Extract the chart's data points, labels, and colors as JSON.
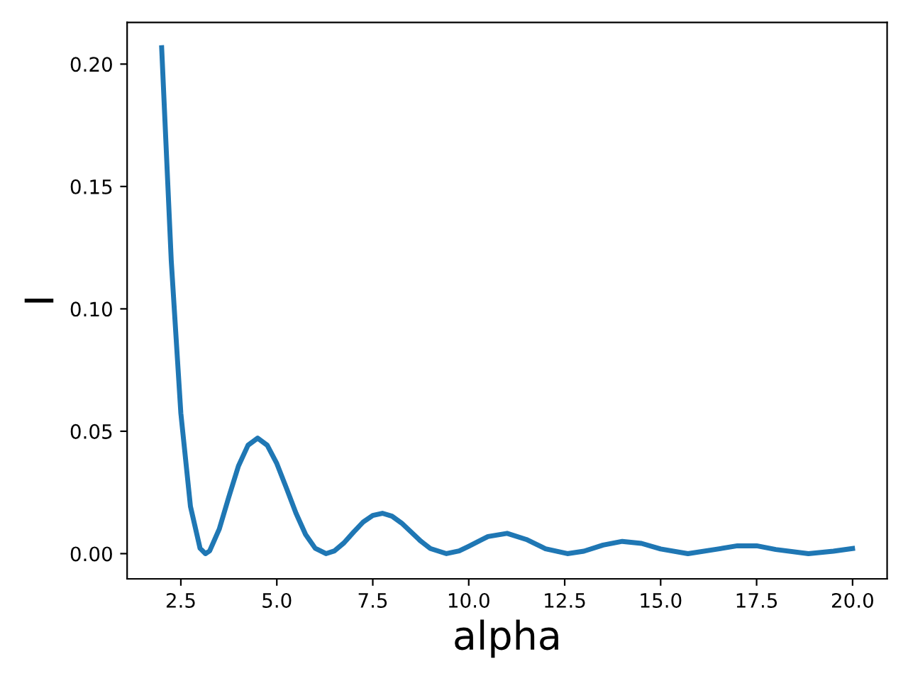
{
  "chart_data": {
    "type": "line",
    "xlabel": "alpha",
    "ylabel": "I",
    "x": [
      2.0,
      2.25,
      2.5,
      2.75,
      3.0,
      3.14,
      3.25,
      3.5,
      3.75,
      4.0,
      4.25,
      4.5,
      4.75,
      5.0,
      5.25,
      5.5,
      5.75,
      6.0,
      6.28,
      6.5,
      6.75,
      7.0,
      7.25,
      7.5,
      7.75,
      8.0,
      8.25,
      8.5,
      8.75,
      9.0,
      9.42,
      9.75,
      10.0,
      10.5,
      11.0,
      11.5,
      12.0,
      12.57,
      13.0,
      13.5,
      14.0,
      14.5,
      15.0,
      15.71,
      16.5,
      17.0,
      17.5,
      18.0,
      18.85,
      19.5,
      20.0
    ],
    "series": [
      {
        "color": "#1f77b4",
        "values": [
          0.2067,
          0.1196,
          0.0573,
          0.0193,
          0.0022,
          0.0,
          0.0011,
          0.01,
          0.0232,
          0.0358,
          0.0443,
          0.0472,
          0.0443,
          0.0368,
          0.0268,
          0.0165,
          0.0078,
          0.0022,
          0.0,
          0.0011,
          0.0044,
          0.0088,
          0.0129,
          0.0156,
          0.0165,
          0.0153,
          0.0125,
          0.0088,
          0.0051,
          0.0021,
          0.0,
          0.0011,
          0.003,
          0.007,
          0.0083,
          0.0058,
          0.002,
          0.0,
          0.001,
          0.0035,
          0.005,
          0.0042,
          0.0019,
          0.0,
          0.0019,
          0.0032,
          0.0032,
          0.0017,
          0.0,
          0.001,
          0.0021
        ]
      }
    ],
    "xlim": [
      1.1,
      20.9
    ],
    "ylim": [
      -0.0103,
      0.217
    ],
    "xticks": [
      {
        "value": 2.5,
        "label": "2.5"
      },
      {
        "value": 5,
        "label": "5.0"
      },
      {
        "value": 7.5,
        "label": "7.5"
      },
      {
        "value": 10,
        "label": "10.0"
      },
      {
        "value": 12.5,
        "label": "12.5"
      },
      {
        "value": 15,
        "label": "15.0"
      },
      {
        "value": 17.5,
        "label": "17.5"
      },
      {
        "value": 20,
        "label": "20.0"
      }
    ],
    "yticks": [
      {
        "value": 0,
        "label": "0.00"
      },
      {
        "value": 0.05,
        "label": "0.05"
      },
      {
        "value": 0.1,
        "label": "0.10"
      },
      {
        "value": 0.15,
        "label": "0.15"
      },
      {
        "value": 0.2,
        "label": "0.20"
      }
    ],
    "grid": false,
    "legend": false,
    "marker": "none",
    "line_style": "solid"
  }
}
